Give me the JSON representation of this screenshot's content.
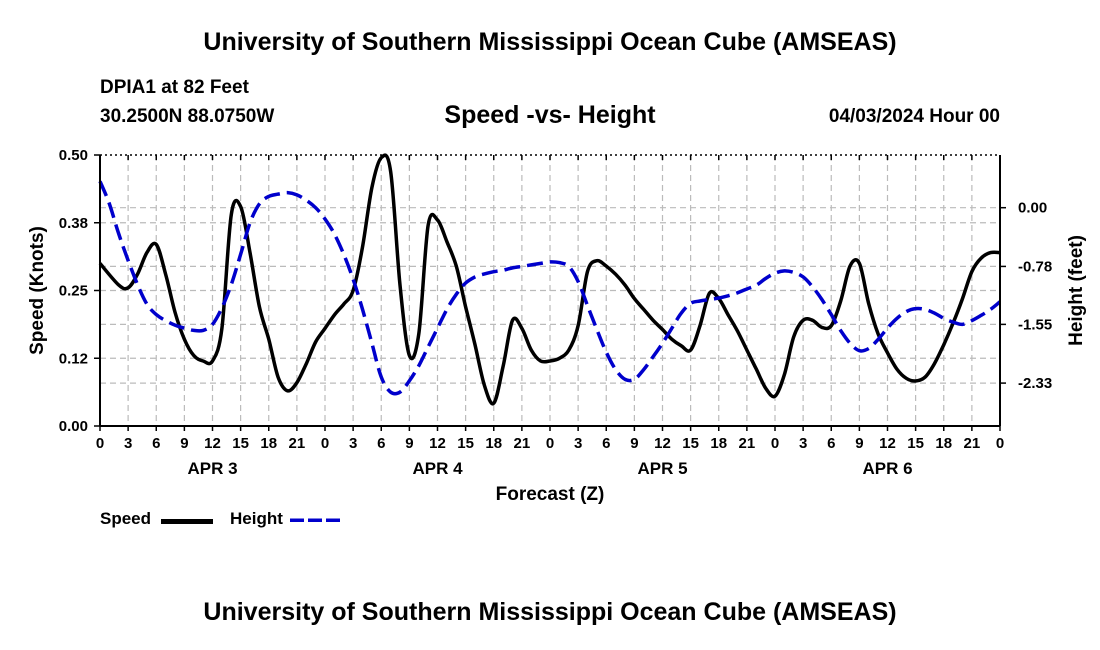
{
  "header": {
    "title": "University of Southern Mississippi Ocean Cube (AMSEAS)",
    "station": "DPIA1 at 82 Feet",
    "coords": "30.2500N  88.0750W",
    "subtitle": "Speed -vs- Height",
    "datetime": "04/03/2024 Hour 00"
  },
  "footer": {
    "title": "University of Southern Mississippi Ocean Cube (AMSEAS)"
  },
  "legend": {
    "speed_label": "Speed",
    "height_label": "Height"
  },
  "chart_data": {
    "type": "line",
    "xlabel": "Forecast (Z)",
    "ylabel": "Speed (Knots)",
    "y2label": "Height (feet)",
    "xlim": [
      0,
      96
    ],
    "x_tick_step": 3,
    "x_tick_labels": [
      "0",
      "3",
      "6",
      "9",
      "12",
      "15",
      "18",
      "21",
      "0",
      "3",
      "6",
      "9",
      "12",
      "15",
      "18",
      "21",
      "0",
      "3",
      "6",
      "9",
      "12",
      "15",
      "18",
      "21",
      "0",
      "3",
      "6",
      "9",
      "12",
      "15",
      "18",
      "21",
      "0"
    ],
    "day_labels": [
      {
        "label": "APR 3",
        "hour": 12
      },
      {
        "label": "APR 4",
        "hour": 36
      },
      {
        "label": "APR 5",
        "hour": 60
      },
      {
        "label": "APR 6",
        "hour": 84
      }
    ],
    "ylim": [
      0,
      0.5
    ],
    "y_ticks": [
      "0.00",
      "0.12",
      "0.25",
      "0.38",
      "0.50"
    ],
    "y_tick_values": [
      0,
      0.125,
      0.25,
      0.375,
      0.5
    ],
    "y2lim": [
      -2.9,
      0.7
    ],
    "y2_ticks": [
      "0.00",
      "-0.78",
      "-1.55",
      "-2.33"
    ],
    "y2_tick_values": [
      0,
      -0.78,
      -1.55,
      -2.33
    ],
    "grid": true,
    "colors": {
      "speed": "#000000",
      "height": "#0000cc",
      "grid": "#bbbbbb"
    },
    "series": [
      {
        "name": "Speed",
        "axis": "left",
        "style": "solid",
        "x": [
          0,
          2,
          3,
          4,
          5,
          6,
          7,
          8,
          9,
          10,
          11,
          12,
          13,
          14,
          15,
          16,
          17,
          18,
          19,
          20,
          21,
          22,
          23,
          24,
          25,
          26,
          27,
          28,
          29,
          30,
          31,
          32,
          33,
          34,
          35,
          36,
          37,
          38,
          39,
          40,
          41,
          42,
          43,
          44,
          45,
          46,
          47,
          48,
          49,
          50,
          51,
          52,
          53,
          54,
          55,
          56,
          57,
          58,
          59,
          60,
          61,
          62,
          63,
          64,
          65,
          66,
          67,
          68,
          69,
          70,
          71,
          72,
          73,
          74,
          75,
          76,
          77,
          78,
          79,
          80,
          81,
          82,
          83,
          84,
          85,
          86,
          87,
          88,
          89,
          90,
          91,
          92,
          93,
          94,
          95,
          96
        ],
        "values": [
          0.3,
          0.26,
          0.255,
          0.28,
          0.32,
          0.335,
          0.28,
          0.21,
          0.16,
          0.13,
          0.12,
          0.12,
          0.18,
          0.39,
          0.405,
          0.32,
          0.22,
          0.16,
          0.09,
          0.065,
          0.08,
          0.115,
          0.155,
          0.18,
          0.205,
          0.225,
          0.25,
          0.33,
          0.44,
          0.495,
          0.47,
          0.26,
          0.13,
          0.17,
          0.37,
          0.38,
          0.34,
          0.295,
          0.22,
          0.15,
          0.075,
          0.042,
          0.11,
          0.195,
          0.18,
          0.14,
          0.12,
          0.12,
          0.125,
          0.14,
          0.185,
          0.285,
          0.305,
          0.295,
          0.28,
          0.26,
          0.235,
          0.215,
          0.195,
          0.178,
          0.16,
          0.148,
          0.14,
          0.185,
          0.245,
          0.235,
          0.205,
          0.175,
          0.14,
          0.105,
          0.07,
          0.055,
          0.095,
          0.165,
          0.195,
          0.195,
          0.182,
          0.185,
          0.23,
          0.295,
          0.3,
          0.225,
          0.17,
          0.135,
          0.105,
          0.088,
          0.083,
          0.09,
          0.115,
          0.15,
          0.19,
          0.235,
          0.285,
          0.31,
          0.32,
          0.32
        ]
      },
      {
        "name": "Height",
        "axis": "right",
        "style": "dashed",
        "x": [
          0,
          1,
          2,
          3,
          4,
          5,
          6,
          7,
          8,
          9,
          10,
          11,
          12,
          13,
          14,
          15,
          16,
          17,
          18,
          19,
          20,
          21,
          22,
          23,
          24,
          25,
          26,
          27,
          28,
          29,
          30,
          31,
          32,
          33,
          34,
          35,
          36,
          37,
          38,
          39,
          40,
          41,
          42,
          43,
          44,
          45,
          46,
          47,
          48,
          49,
          50,
          51,
          52,
          53,
          54,
          55,
          56,
          57,
          58,
          59,
          60,
          61,
          62,
          63,
          64,
          65,
          66,
          67,
          68,
          69,
          70,
          71,
          72,
          73,
          74,
          75,
          76,
          77,
          78,
          79,
          80,
          81,
          82,
          83,
          84,
          85,
          86,
          87,
          88,
          89,
          90,
          91,
          92,
          93,
          94,
          95,
          96
        ],
        "values": [
          0.35,
          0.05,
          -0.35,
          -0.7,
          -1.02,
          -1.28,
          -1.42,
          -1.5,
          -1.56,
          -1.6,
          -1.63,
          -1.63,
          -1.55,
          -1.33,
          -1.02,
          -0.62,
          -0.2,
          0.05,
          0.15,
          0.18,
          0.2,
          0.17,
          0.1,
          0.0,
          -0.15,
          -0.35,
          -0.62,
          -0.95,
          -1.35,
          -1.8,
          -2.25,
          -2.45,
          -2.45,
          -2.3,
          -2.1,
          -1.85,
          -1.6,
          -1.35,
          -1.15,
          -1.0,
          -0.92,
          -0.88,
          -0.85,
          -0.83,
          -0.8,
          -0.78,
          -0.76,
          -0.74,
          -0.72,
          -0.73,
          -0.78,
          -0.98,
          -1.3,
          -1.62,
          -1.92,
          -2.15,
          -2.28,
          -2.28,
          -2.15,
          -1.98,
          -1.8,
          -1.6,
          -1.4,
          -1.27,
          -1.24,
          -1.22,
          -1.2,
          -1.17,
          -1.13,
          -1.08,
          -1.03,
          -0.94,
          -0.87,
          -0.84,
          -0.86,
          -0.92,
          -1.05,
          -1.22,
          -1.42,
          -1.63,
          -1.8,
          -1.9,
          -1.87,
          -1.75,
          -1.6,
          -1.47,
          -1.38,
          -1.34,
          -1.35,
          -1.4,
          -1.47,
          -1.52,
          -1.55,
          -1.5,
          -1.43,
          -1.35,
          -1.25
        ]
      }
    ]
  }
}
